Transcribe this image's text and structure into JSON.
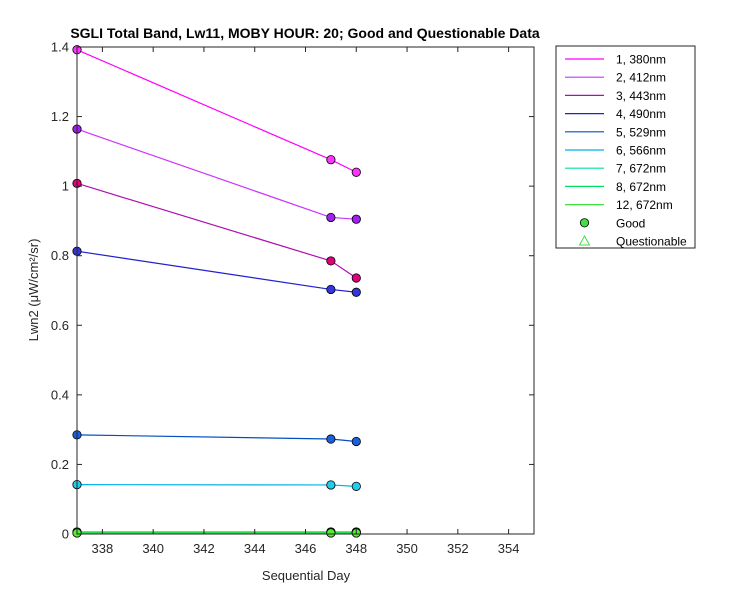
{
  "chart_data": {
    "type": "line",
    "title": "SGLI Total Band, Lw11, MOBY HOUR: 20;  Good and Questionable Data",
    "xlabel": "Sequential Day",
    "ylabel": "Lwn2 (μW/cm²/sr)",
    "xlim": [
      337,
      355
    ],
    "ylim": [
      0,
      1.4
    ],
    "xticks": [
      338,
      340,
      342,
      344,
      346,
      348,
      350,
      352,
      354
    ],
    "xtick_labels": [
      "338",
      "340",
      "342",
      "344",
      "346",
      "348",
      "350",
      "352",
      "354"
    ],
    "yticks": [
      0,
      0.2,
      0.4,
      0.6,
      0.8,
      1,
      1.2,
      1.4
    ],
    "ytick_labels": [
      "0",
      "0.2",
      "0.4",
      "0.6",
      "0.8",
      "1",
      "1.2",
      "1.4"
    ],
    "grid": false,
    "legend_position": "outside-top-right",
    "x": [
      337,
      347,
      348
    ],
    "series": [
      {
        "name": "1, 380nm",
        "color": "#ff00ff",
        "marker_fill": "#ff33ff",
        "values": [
          1.392,
          1.076,
          1.04
        ]
      },
      {
        "name": "2, 412nm",
        "color": "#cc33ff",
        "marker_fill": "#a020f0",
        "values": [
          1.164,
          0.91,
          0.905
        ]
      },
      {
        "name": "3, 443nm",
        "color": "#b00fb0",
        "marker_fill": "#e0007a",
        "values": [
          1.008,
          0.785,
          0.736
        ]
      },
      {
        "name": "4, 490nm",
        "color": "#2020d0",
        "marker_fill": "#3535e0",
        "values": [
          0.813,
          0.703,
          0.695
        ]
      },
      {
        "name": "5, 529nm",
        "color": "#0050c0",
        "marker_fill": "#1a5fe0",
        "values": [
          0.285,
          0.273,
          0.266
        ]
      },
      {
        "name": "6, 566nm",
        "color": "#00b0e8",
        "marker_fill": "#22ccee",
        "values": [
          0.142,
          0.141,
          0.137
        ]
      },
      {
        "name": "7, 672nm",
        "color": "#00e0a0",
        "marker_fill": "#22eecc",
        "values": [
          0.006,
          0.006,
          0.006
        ]
      },
      {
        "name": "8, 672nm",
        "color": "#00e060",
        "marker_fill": "#44ee55",
        "values": [
          0.004,
          0.004,
          0.004
        ]
      },
      {
        "name": "12, 672nm",
        "color": "#40e040",
        "marker_fill": "#55ee33",
        "values": [
          0.003,
          0.003,
          0.003
        ]
      }
    ],
    "marker_legend": [
      {
        "name": "Good",
        "marker": "circle",
        "color": "#40e040"
      },
      {
        "name": "Questionable",
        "marker": "triangle",
        "color": "#40e040"
      }
    ]
  }
}
